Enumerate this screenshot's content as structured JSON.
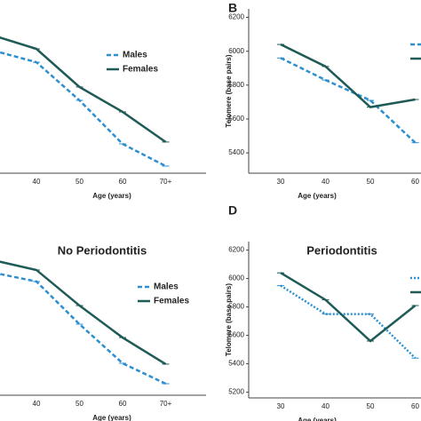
{
  "chart_data": [
    {
      "type": "line",
      "x_label": "Age (years)",
      "categories": [
        null,
        "40",
        "50",
        "60",
        "70+"
      ],
      "ylim": [
        5280,
        6250
      ],
      "series": [
        {
          "name": "Males",
          "color": "#2b8fd1",
          "dash": "dashed",
          "values": [
            6004,
            5935,
            5710,
            5453,
            5322
          ]
        },
        {
          "name": "Females",
          "color": "#1e5b57",
          "dash": "solid",
          "values": [
            6093,
            6014,
            5789,
            5642,
            5464
          ]
        }
      ]
    },
    {
      "type": "line",
      "panel": "B",
      "x_label": "Age (years)",
      "y_label": "Telomere (base pairs)",
      "categories": [
        "30",
        "40",
        "50",
        "60"
      ],
      "ylim": [
        5280,
        6250
      ],
      "yticks": [
        5400,
        5600,
        5800,
        6000,
        6200
      ],
      "series": [
        {
          "color": "#2b8fd1",
          "dash": "dashed",
          "values": [
            5960,
            5830,
            5710,
            5460
          ]
        },
        {
          "color": "#1e5b57",
          "dash": "solid",
          "values": [
            6040,
            5910,
            5670,
            5715
          ]
        }
      ]
    },
    {
      "type": "line",
      "title": "No Periodontitis",
      "x_label": "Age (years)",
      "categories": [
        null,
        "40",
        "50",
        "60",
        "70+"
      ],
      "ylim": [
        5280,
        6250
      ],
      "series": [
        {
          "name": "Males",
          "color": "#2b8fd1",
          "dash": "dashed",
          "values": [
            6024,
            5970,
            5711,
            5474,
            5350
          ]
        },
        {
          "name": "Females",
          "color": "#1e5b57",
          "dash": "solid",
          "values": [
            6099,
            6040,
            5824,
            5630,
            5469
          ]
        }
      ]
    },
    {
      "type": "line",
      "panel": "D",
      "title": "Periodontitis",
      "x_label": "Age (years)",
      "y_label": "Telomere (base pairs)",
      "categories": [
        "30",
        "40",
        "50",
        "60"
      ],
      "ylim": [
        5160,
        6260
      ],
      "yticks": [
        5200,
        5400,
        5600,
        5800,
        6000,
        6200
      ],
      "series": [
        {
          "color": "#2b8fd1",
          "dash": "dotted",
          "values": [
            5950,
            5750,
            5750,
            5440
          ]
        },
        {
          "color": "#1e5b57",
          "dash": "solid",
          "values": [
            6040,
            5850,
            5560,
            5810
          ]
        }
      ]
    }
  ]
}
